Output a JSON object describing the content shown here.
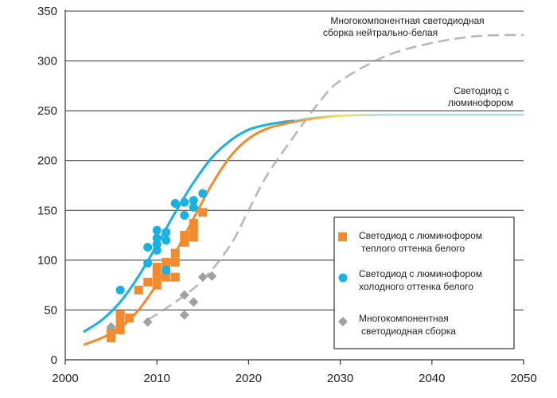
{
  "chart_data": {
    "type": "scatter",
    "title": "",
    "xlabel": "",
    "ylabel": "",
    "xlim": [
      2000,
      2050
    ],
    "ylim": [
      0,
      350
    ],
    "x_ticks": [
      2000,
      2010,
      2020,
      2030,
      2040,
      2050
    ],
    "y_ticks": [
      0,
      50,
      100,
      150,
      200,
      250,
      300,
      350
    ],
    "grid": "horizontal",
    "colors": {
      "warm": "#f28a2e",
      "cool": "#1ab0e0",
      "multi": "#a0a0a0",
      "asymptote": "#a8dfe8"
    },
    "annotations": {
      "multi_line1": "Многокомпонентная светодиодная",
      "multi_line2": "сборка нейтрально-белая",
      "phosphor_line1": "Светодиод с",
      "phosphor_line2": "люминофором"
    },
    "series": [
      {
        "name": "Светодиод с люминофором теплого оттенка белого",
        "legend_lines": [
          "Светодиод с люминофором",
          "теплого оттенка белого"
        ],
        "marker": "square",
        "color": "#f28a2e",
        "points": [
          [
            2005,
            22
          ],
          [
            2005,
            28
          ],
          [
            2006,
            30
          ],
          [
            2006,
            37
          ],
          [
            2006,
            45
          ],
          [
            2007,
            42
          ],
          [
            2008,
            70
          ],
          [
            2009,
            78
          ],
          [
            2010,
            75
          ],
          [
            2010,
            80
          ],
          [
            2010,
            85
          ],
          [
            2010,
            93
          ],
          [
            2011,
            83
          ],
          [
            2011,
            90
          ],
          [
            2011,
            98
          ],
          [
            2012,
            83
          ],
          [
            2012,
            98
          ],
          [
            2012,
            107
          ],
          [
            2013,
            118
          ],
          [
            2013,
            125
          ],
          [
            2014,
            123
          ],
          [
            2014,
            130
          ],
          [
            2014,
            137
          ],
          [
            2015,
            148
          ]
        ],
        "trend": [
          [
            2002,
            15
          ],
          [
            2004,
            22
          ],
          [
            2006,
            32
          ],
          [
            2008,
            50
          ],
          [
            2010,
            76
          ],
          [
            2012,
            107
          ],
          [
            2014,
            142
          ],
          [
            2016,
            176
          ],
          [
            2018,
            204
          ],
          [
            2020,
            222
          ],
          [
            2022,
            232
          ],
          [
            2024,
            237
          ],
          [
            2025,
            239
          ],
          [
            2027,
            242
          ],
          [
            2030,
            245
          ],
          [
            2035,
            246
          ],
          [
            2040,
            246
          ],
          [
            2045,
            246
          ],
          [
            2050,
            246
          ]
        ]
      },
      {
        "name": "Светодиод с люминофором холодного оттенка белого",
        "legend_lines": [
          "Светодиод с люминофором",
          "холодного оттенка белого"
        ],
        "marker": "circle",
        "color": "#1ab0e0",
        "points": [
          [
            2006,
            70
          ],
          [
            2009,
            97
          ],
          [
            2009,
            113
          ],
          [
            2010,
            110
          ],
          [
            2010,
            116
          ],
          [
            2010,
            122
          ],
          [
            2010,
            130
          ],
          [
            2011,
            90
          ],
          [
            2011,
            120
          ],
          [
            2011,
            128
          ],
          [
            2012,
            157
          ],
          [
            2013,
            145
          ],
          [
            2013,
            158
          ],
          [
            2014,
            153
          ],
          [
            2014,
            160
          ],
          [
            2015,
            167
          ]
        ],
        "trend": [
          [
            2002,
            28
          ],
          [
            2004,
            40
          ],
          [
            2006,
            58
          ],
          [
            2008,
            84
          ],
          [
            2010,
            115
          ],
          [
            2012,
            148
          ],
          [
            2014,
            178
          ],
          [
            2016,
            203
          ],
          [
            2018,
            220
          ],
          [
            2020,
            231
          ],
          [
            2022,
            236
          ],
          [
            2024,
            239
          ],
          [
            2025,
            240
          ],
          [
            2027,
            243
          ],
          [
            2030,
            245
          ],
          [
            2035,
            246
          ],
          [
            2040,
            246
          ],
          [
            2045,
            246
          ],
          [
            2050,
            246
          ]
        ]
      },
      {
        "name": "Многокомпонентная светодиодная сборка",
        "legend_lines": [
          "Многокомпонентная",
          "светодиодная сборка"
        ],
        "marker": "diamond",
        "color": "#a0a0a0",
        "points": [
          [
            2005,
            33
          ],
          [
            2009,
            38
          ],
          [
            2013,
            45
          ],
          [
            2013,
            65
          ],
          [
            2014,
            58
          ],
          [
            2015,
            83
          ],
          [
            2016,
            84
          ]
        ],
        "trend": [
          [
            2009,
            40
          ],
          [
            2012,
            58
          ],
          [
            2015,
            80
          ],
          [
            2018,
            115
          ],
          [
            2020,
            150
          ],
          [
            2022,
            185
          ],
          [
            2025,
            225
          ],
          [
            2028,
            262
          ],
          [
            2030,
            280
          ],
          [
            2035,
            305
          ],
          [
            2040,
            318
          ],
          [
            2045,
            325
          ],
          [
            2050,
            326
          ]
        ]
      }
    ]
  }
}
